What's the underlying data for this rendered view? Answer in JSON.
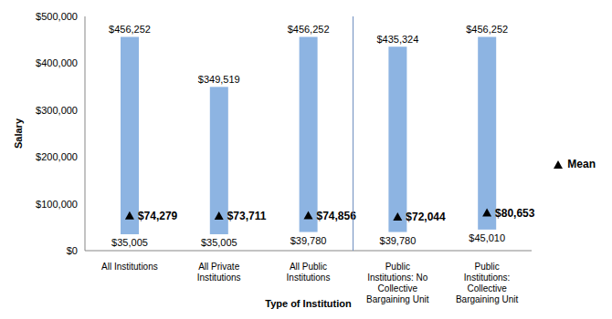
{
  "chart_data": {
    "type": "bar",
    "xlabel": "Type of Institution",
    "ylabel": "Salary",
    "categories": [
      "All Institutions",
      "All Private Institutions",
      "All Public Institutions",
      "Public Institutions: No Collective Bargaining Unit",
      "Public Institutions: Collective Bargaining Unit"
    ],
    "range": {
      "color": "#8db4e2",
      "low": [
        35005,
        35005,
        39780,
        39780,
        45010
      ],
      "low_labels": [
        "$35,005",
        "$35,005",
        "$39,780",
        "$39,780",
        "$45,010"
      ],
      "high": [
        456252,
        349519,
        456252,
        435324,
        456252
      ],
      "high_labels": [
        "$456,252",
        "$349,519",
        "$456,252",
        "$435,324",
        "$456,252"
      ]
    },
    "series": [
      {
        "name": "Mean",
        "type": "scatter",
        "marker": "triangle",
        "color": "#000000",
        "values": [
          74279,
          73711,
          74856,
          72044,
          80653
        ],
        "value_labels": [
          "$74,279",
          "$73,711",
          "$74,856",
          "$72,044",
          "$80,653"
        ]
      }
    ],
    "ylim": [
      0,
      500000
    ],
    "yticks": [
      {
        "value": 0,
        "label": "$0"
      },
      {
        "value": 100000,
        "label": "$100,000"
      },
      {
        "value": 200000,
        "label": "$200,000"
      },
      {
        "value": 300000,
        "label": "$300,000"
      },
      {
        "value": 400000,
        "label": "$400,000"
      },
      {
        "value": 500000,
        "label": "$500,000"
      }
    ],
    "grid": false,
    "data_labels": true,
    "legend": "right"
  }
}
